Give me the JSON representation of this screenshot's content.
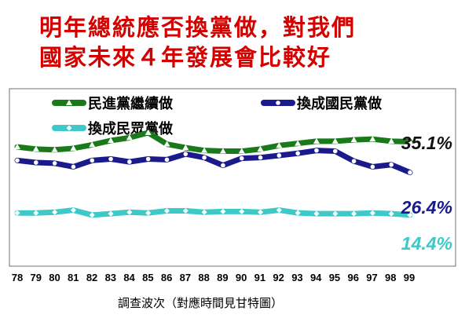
{
  "chart_data": {
    "type": "line",
    "title_lines": [
      "明年總統應否換黨做，對我們",
      "國家未來４年發展會比較好"
    ],
    "xlabel": "調查波次（對應時間見甘特圖）",
    "ylabel": "",
    "categories": [
      "78",
      "79",
      "80",
      "81",
      "82",
      "83",
      "84",
      "85",
      "86",
      "87",
      "88",
      "89",
      "90",
      "91",
      "92",
      "93",
      "94",
      "95",
      "96",
      "97",
      "98",
      "99"
    ],
    "ylim": [
      0,
      50
    ],
    "grid": false,
    "legend_position": "top",
    "series": [
      {
        "name": "民進黨繼續做",
        "color": "#1a7a1a",
        "marker": "triangle",
        "end_label": "35.1%",
        "end_label_color": "#111111",
        "values": [
          33.6,
          33.0,
          32.8,
          33.2,
          34.2,
          35.4,
          36.2,
          37.6,
          34.4,
          33.4,
          32.6,
          32.4,
          32.4,
          33.0,
          34.0,
          34.6,
          35.2,
          35.2,
          35.6,
          35.8,
          35.2,
          35.1
        ]
      },
      {
        "name": "換成國民黨做",
        "color": "#1a1a8c",
        "marker": "circle",
        "end_label": "26.4%",
        "end_label_color": "#1a1a8c",
        "values": [
          29.8,
          29.2,
          29.0,
          28.0,
          29.8,
          30.2,
          29.4,
          30.2,
          30.0,
          31.6,
          30.6,
          28.4,
          30.4,
          30.6,
          31.2,
          31.8,
          32.6,
          32.4,
          29.6,
          28.0,
          28.6,
          26.4
        ]
      },
      {
        "name": "換成民眾黨做",
        "color": "#3ec8c8",
        "marker": "diamond",
        "end_label": "14.4%",
        "end_label_color": "#3ec8c8",
        "values": [
          15.0,
          15.0,
          15.2,
          15.8,
          14.4,
          14.8,
          15.2,
          15.0,
          15.6,
          15.6,
          15.2,
          15.4,
          15.4,
          15.2,
          15.8,
          15.0,
          14.8,
          14.8,
          14.8,
          15.0,
          14.8,
          14.4
        ]
      }
    ]
  }
}
